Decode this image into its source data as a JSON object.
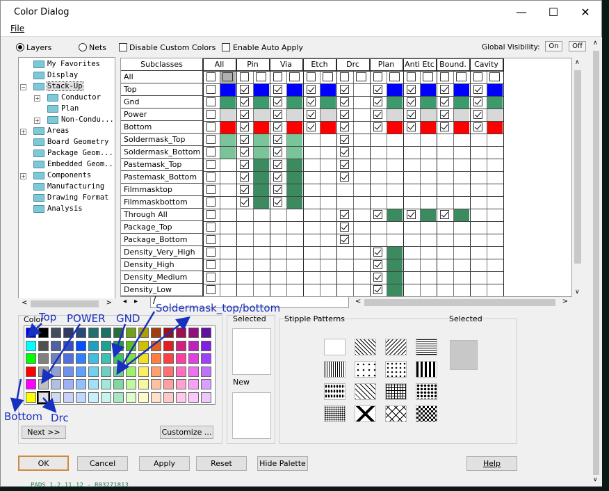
{
  "window": {
    "title": "Color Dialog",
    "menu_file": "File"
  },
  "top": {
    "layers_label": "Layers",
    "nets_label": "Nets",
    "disable_custom": "Disable Custom Colors",
    "enable_auto": "Enable Auto Apply",
    "global_visibility": "Global Visibility:",
    "on": "On",
    "off": "Off"
  },
  "tree": [
    {
      "label": "My Favorites",
      "indent": 0,
      "expander": false
    },
    {
      "label": "Display",
      "indent": 0,
      "expander": false
    },
    {
      "label": "Stack-Up",
      "indent": 0,
      "expander": "minus",
      "selected": true
    },
    {
      "label": "Conductor",
      "indent": 1,
      "expander": "plus"
    },
    {
      "label": "Plan",
      "indent": 1,
      "expander": false
    },
    {
      "label": "Non-Condu...",
      "indent": 1,
      "expander": "plus"
    },
    {
      "label": "Areas",
      "indent": 0,
      "expander": "plus"
    },
    {
      "label": "Board Geometry",
      "indent": 0,
      "expander": false
    },
    {
      "label": "Package Geom...",
      "indent": 0,
      "expander": false
    },
    {
      "label": "Embedded Geom...",
      "indent": 0,
      "expander": false
    },
    {
      "label": "Components",
      "indent": 0,
      "expander": "plus"
    },
    {
      "label": "Manufacturing",
      "indent": 0,
      "expander": false
    },
    {
      "label": "Drawing Format",
      "indent": 0,
      "expander": false
    },
    {
      "label": "Analysis",
      "indent": 0,
      "expander": false
    }
  ],
  "grid": {
    "subclasses_header": "Subclasses",
    "columns": [
      "All",
      "Pin",
      "Via",
      "Etch",
      "Drc",
      "Plan",
      "Anti Etc",
      "Bound.",
      "Cavity"
    ],
    "rows": [
      {
        "name": "All",
        "cells": [
          [
            0,
            "#b0b0b0"
          ],
          [
            0,
            ""
          ],
          [
            0,
            ""
          ],
          [
            0,
            ""
          ],
          [
            0,
            ""
          ],
          [
            0,
            ""
          ],
          [
            0,
            ""
          ],
          [
            0,
            ""
          ],
          [
            0,
            ""
          ]
        ]
      },
      {
        "name": "Top",
        "cells": [
          [
            0,
            "#0000ff"
          ],
          [
            1,
            "#0000ff"
          ],
          [
            1,
            "#0000ff"
          ],
          [
            1,
            "#0000ff"
          ],
          [
            1,
            ""
          ],
          [
            1,
            "#0000ff"
          ],
          [
            1,
            "#0000ff"
          ],
          [
            1,
            "#0000ff"
          ],
          [
            1,
            "#0000ff"
          ]
        ]
      },
      {
        "name": "Gnd",
        "cells": [
          [
            0,
            "#3c9a6c"
          ],
          [
            1,
            "#3c9a6c"
          ],
          [
            1,
            "#3c9a6c"
          ],
          [
            1,
            "#3c9a6c"
          ],
          [
            1,
            ""
          ],
          [
            1,
            "#3c9a6c"
          ],
          [
            1,
            "#3c9a6c"
          ],
          [
            1,
            "#3c9a6c"
          ],
          [
            1,
            "#3c9a6c"
          ]
        ]
      },
      {
        "name": "Power",
        "cells": [
          [
            0,
            "#d8d8d8"
          ],
          [
            1,
            "#d8d8d8"
          ],
          [
            1,
            "#d8d8d8"
          ],
          [
            1,
            "#d8d8d8"
          ],
          [
            1,
            ""
          ],
          [
            1,
            "#d8d8d8"
          ],
          [
            1,
            "#d8d8d8"
          ],
          [
            1,
            "#d8d8d8"
          ],
          [
            1,
            "#d8d8d8"
          ]
        ]
      },
      {
        "name": "Bottom",
        "cells": [
          [
            0,
            "#ff0000"
          ],
          [
            1,
            "#ff0000"
          ],
          [
            1,
            "#ff0000"
          ],
          [
            1,
            "#ff0000"
          ],
          [
            1,
            ""
          ],
          [
            1,
            "#ff0000"
          ],
          [
            1,
            "#ff0000"
          ],
          [
            1,
            "#ff0000"
          ],
          [
            1,
            "#ff0000"
          ]
        ]
      },
      {
        "name": "Soldermask_Top",
        "cells": [
          [
            0,
            "#7ac49a"
          ],
          [
            1,
            "#7ac49a"
          ],
          [
            1,
            "#7ac49a"
          ],
          [
            -1,
            ""
          ],
          [
            1,
            ""
          ],
          [
            -1,
            ""
          ],
          [
            -1,
            ""
          ],
          [
            -1,
            ""
          ],
          [
            -1,
            ""
          ]
        ]
      },
      {
        "name": "Soldermask_Bottom",
        "cells": [
          [
            0,
            "#7ac49a"
          ],
          [
            1,
            "#7ac49a"
          ],
          [
            1,
            "#7ac49a"
          ],
          [
            -1,
            ""
          ],
          [
            1,
            ""
          ],
          [
            -1,
            ""
          ],
          [
            -1,
            ""
          ],
          [
            -1,
            ""
          ],
          [
            -1,
            ""
          ]
        ]
      },
      {
        "name": "Pastemask_Top",
        "cells": [
          [
            0,
            ""
          ],
          [
            1,
            "#3c8a60"
          ],
          [
            1,
            "#3c8a60"
          ],
          [
            -1,
            ""
          ],
          [
            1,
            ""
          ],
          [
            -1,
            ""
          ],
          [
            -1,
            ""
          ],
          [
            -1,
            ""
          ],
          [
            -1,
            ""
          ]
        ]
      },
      {
        "name": "Pastemask_Bottom",
        "cells": [
          [
            0,
            ""
          ],
          [
            1,
            "#3c8a60"
          ],
          [
            1,
            "#3c8a60"
          ],
          [
            -1,
            ""
          ],
          [
            1,
            ""
          ],
          [
            -1,
            ""
          ],
          [
            -1,
            ""
          ],
          [
            -1,
            ""
          ],
          [
            -1,
            ""
          ]
        ]
      },
      {
        "name": "Filmmasktop",
        "cells": [
          [
            0,
            ""
          ],
          [
            1,
            "#3c8a60"
          ],
          [
            1,
            "#3c8a60"
          ],
          [
            -1,
            ""
          ],
          [
            -1,
            ""
          ],
          [
            -1,
            ""
          ],
          [
            -1,
            ""
          ],
          [
            -1,
            ""
          ],
          [
            -1,
            ""
          ]
        ]
      },
      {
        "name": "Filmmaskbottom",
        "cells": [
          [
            0,
            ""
          ],
          [
            1,
            "#3c8a60"
          ],
          [
            1,
            "#3c8a60"
          ],
          [
            -1,
            ""
          ],
          [
            -1,
            ""
          ],
          [
            -1,
            ""
          ],
          [
            -1,
            ""
          ],
          [
            -1,
            ""
          ],
          [
            -1,
            ""
          ]
        ]
      },
      {
        "name": "Through All",
        "cells": [
          [
            0,
            ""
          ],
          [
            -1,
            ""
          ],
          [
            -1,
            ""
          ],
          [
            -1,
            ""
          ],
          [
            1,
            ""
          ],
          [
            1,
            "#3c8a60"
          ],
          [
            1,
            "#3c8a60"
          ],
          [
            1,
            "#3c8a60"
          ],
          [
            -1,
            ""
          ]
        ]
      },
      {
        "name": "Package_Top",
        "cells": [
          [
            0,
            ""
          ],
          [
            -1,
            ""
          ],
          [
            -1,
            ""
          ],
          [
            -1,
            ""
          ],
          [
            1,
            ""
          ],
          [
            -1,
            ""
          ],
          [
            -1,
            ""
          ],
          [
            -1,
            ""
          ],
          [
            -1,
            ""
          ]
        ]
      },
      {
        "name": "Package_Bottom",
        "cells": [
          [
            0,
            ""
          ],
          [
            -1,
            ""
          ],
          [
            -1,
            ""
          ],
          [
            -1,
            ""
          ],
          [
            1,
            ""
          ],
          [
            -1,
            ""
          ],
          [
            -1,
            ""
          ],
          [
            -1,
            ""
          ],
          [
            -1,
            ""
          ]
        ]
      },
      {
        "name": "Density_Very_High",
        "cells": [
          [
            0,
            ""
          ],
          [
            -1,
            ""
          ],
          [
            -1,
            ""
          ],
          [
            -1,
            ""
          ],
          [
            -1,
            ""
          ],
          [
            1,
            "#3c8a60"
          ],
          [
            -1,
            ""
          ],
          [
            -1,
            ""
          ],
          [
            -1,
            ""
          ]
        ]
      },
      {
        "name": "Density_High",
        "cells": [
          [
            0,
            ""
          ],
          [
            -1,
            ""
          ],
          [
            -1,
            ""
          ],
          [
            -1,
            ""
          ],
          [
            -1,
            ""
          ],
          [
            1,
            "#3c8a60"
          ],
          [
            -1,
            ""
          ],
          [
            -1,
            ""
          ],
          [
            -1,
            ""
          ]
        ]
      },
      {
        "name": "Density_Medium",
        "cells": [
          [
            0,
            ""
          ],
          [
            -1,
            ""
          ],
          [
            -1,
            ""
          ],
          [
            -1,
            ""
          ],
          [
            -1,
            ""
          ],
          [
            1,
            "#3c8a60"
          ],
          [
            -1,
            ""
          ],
          [
            -1,
            ""
          ],
          [
            -1,
            ""
          ]
        ]
      },
      {
        "name": "Density_Low",
        "cells": [
          [
            0,
            ""
          ],
          [
            -1,
            ""
          ],
          [
            -1,
            ""
          ],
          [
            -1,
            ""
          ],
          [
            -1,
            ""
          ],
          [
            1,
            "#3c8a60"
          ],
          [
            -1,
            ""
          ],
          [
            -1,
            ""
          ],
          [
            -1,
            ""
          ]
        ]
      }
    ]
  },
  "palette": {
    "color_label": "Color",
    "rows": [
      [
        "#0000ff",
        "#000000",
        "#444c5c",
        "#303a60",
        "#284a78",
        "#207070",
        "#1c7068",
        "#2a6a40",
        "#70a020",
        "#b0a000",
        "#a04010",
        "#a01010",
        "#a01050",
        "#901080",
        "#6010a0"
      ],
      [
        "#00ffff",
        "#505050",
        "#5060a0",
        "#3050c0",
        "#0050ff",
        "#20a0c0",
        "#20a090",
        "#20a040",
        "#60c020",
        "#d0c000",
        "#e06020",
        "#e02020",
        "#d02080",
        "#c020c0",
        "#8020e0"
      ],
      [
        "#00ff00",
        "#808080",
        "#7080c0",
        "#5070e0",
        "#3080ff",
        "#40c0e0",
        "#40c0b0",
        "#40c060",
        "#80e040",
        "#f0e020",
        "#ff8040",
        "#ff4040",
        "#ff40a0",
        "#e040e0",
        "#a040ff"
      ],
      [
        "#ff0000",
        "#a0a0a0",
        "#90a0d0",
        "#7090f0",
        "#60a0ff",
        "#70d0f0",
        "#70d0c0",
        "#70d090",
        "#a0f070",
        "#f8f060",
        "#ffa070",
        "#ff7070",
        "#ff70c0",
        "#f070f0",
        "#c070ff"
      ],
      [
        "#ff00ff",
        "#c0c0c0",
        "#b0c0e0",
        "#a0b0f8",
        "#90c0ff",
        "#a0e0f8",
        "#a0e8d8",
        "#80d8a0",
        "#c0f8a0",
        "#f8f8a0",
        "#ffc0a0",
        "#ffa0a0",
        "#ffa0d0",
        "#f8a0f8",
        "#d8a0ff"
      ],
      [
        "#ffff00",
        "#e0e0e0",
        "#d0d8f0",
        "#c8d0fc",
        "#c0d8ff",
        "#c8f0fc",
        "#c8f4ec",
        "#a8e8c0",
        "#e0fcc8",
        "#fcfcc8",
        "#ffe0c8",
        "#ffc8c8",
        "#ffc8e8",
        "#fcc8fc",
        "#ecc8ff"
      ]
    ],
    "next_button": "Next >>",
    "customize_button": "Customize ..."
  },
  "selected_label": "Selected",
  "new_label": "New",
  "stipple": {
    "label": "Stipple Patterns",
    "selected_label": "Selected",
    "selected_color": "#c8c8c8"
  },
  "buttons": {
    "ok": "OK",
    "cancel": "Cancel",
    "apply": "Apply",
    "reset": "Reset",
    "hide_palette": "Hide Palette",
    "help": "Help"
  },
  "tab_label": "/",
  "annotations": {
    "top": "Top",
    "power": "POWER",
    "gnd": "GND",
    "soldermask": "Soldermask_top/bottom",
    "bottom": "Bottom",
    "drc": "Drc",
    "color": "#1830c0"
  },
  "background_text": "PADS 1.2.11.12 - R03271813"
}
